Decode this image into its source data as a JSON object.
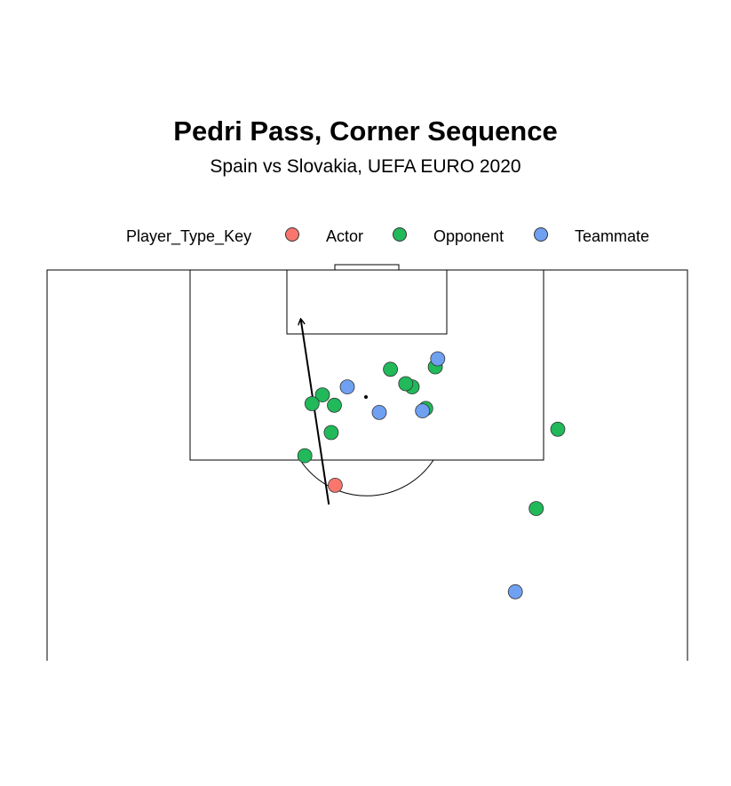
{
  "chart_data": {
    "type": "scatter",
    "title": "Pedri Pass, Corner Sequence",
    "subtitle": "Spain vs Slovakia, UEFA EURO 2020",
    "legend": {
      "title": "Player_Type_Key",
      "placement": "top",
      "items": [
        {
          "label": "Actor",
          "color": "#F8766D"
        },
        {
          "label": "Opponent",
          "color": "#21B95A"
        },
        {
          "label": "Teammate",
          "color": "#6FA0F2"
        }
      ]
    },
    "pitch": {
      "units": "statsbomb",
      "length": 120,
      "width": 80,
      "view": "attacking-half",
      "x_range": [
        60,
        120
      ],
      "y_range": [
        0,
        80
      ]
    },
    "pass": {
      "start": [
        90.7,
        44.8
      ],
      "end": [
        113.8,
        48.3
      ],
      "arrow": true
    },
    "points": [
      {
        "x": 93.1,
        "y": 44.0,
        "type": "Actor"
      },
      {
        "x": 96.8,
        "y": 47.8,
        "type": "Opponent"
      },
      {
        "x": 99.7,
        "y": 44.5,
        "type": "Opponent"
      },
      {
        "x": 102.7,
        "y": 32.7,
        "type": "Opponent"
      },
      {
        "x": 90.2,
        "y": 18.9,
        "type": "Opponent"
      },
      {
        "x": 100.1,
        "y": 16.2,
        "type": "Opponent"
      },
      {
        "x": 107.6,
        "y": 37.1,
        "type": "Opponent"
      },
      {
        "x": 107.9,
        "y": 31.5,
        "type": "Opponent"
      },
      {
        "x": 105.4,
        "y": 34.4,
        "type": "Opponent"
      },
      {
        "x": 105.8,
        "y": 35.2,
        "type": "Opponent"
      },
      {
        "x": 103.1,
        "y": 44.1,
        "type": "Opponent"
      },
      {
        "x": 104.4,
        "y": 45.6,
        "type": "Opponent"
      },
      {
        "x": 103.3,
        "y": 46.9,
        "type": "Opponent"
      },
      {
        "x": 79.8,
        "y": 21.5,
        "type": "Teammate"
      },
      {
        "x": 108.9,
        "y": 31.2,
        "type": "Teammate"
      },
      {
        "x": 105.4,
        "y": 42.5,
        "type": "Teammate"
      },
      {
        "x": 102.4,
        "y": 33.1,
        "type": "Teammate"
      },
      {
        "x": 102.2,
        "y": 38.5,
        "type": "Teammate"
      }
    ],
    "grid": false
  }
}
